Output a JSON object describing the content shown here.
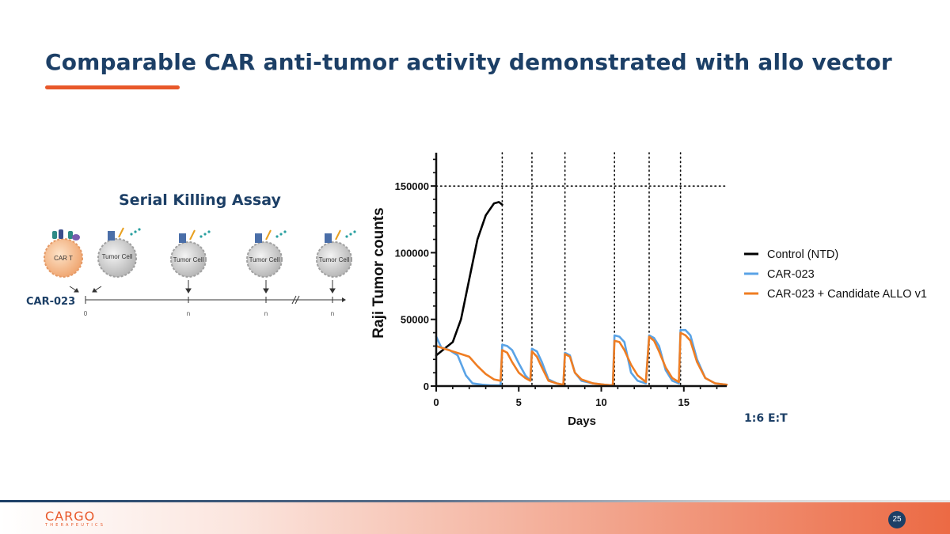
{
  "slide": {
    "title": "Comparable CAR anti-tumor activity demonstrated with allo vector",
    "page_number": "25",
    "ratio_label": "1:6 E:T",
    "logo": {
      "word": "CARGO",
      "sub": "THERAPEUTICS"
    },
    "colors": {
      "title": "#1c3f66",
      "accent": "#e8582a"
    }
  },
  "assay": {
    "title": "Serial Killing Assay",
    "row_label": "CAR-023",
    "car_t_label": "CAR T",
    "tumor_cell_label": "Tumor Cell",
    "tick_labels": [
      "0",
      "n",
      "n",
      "n"
    ]
  },
  "chart_data": {
    "type": "line",
    "xlabel": "Days",
    "ylabel": "Raji Tumor counts",
    "xlim": [
      0,
      17.6
    ],
    "ylim": [
      0,
      175000
    ],
    "x_ticks": [
      0,
      5,
      10,
      15
    ],
    "x_tick_labels": [
      "0",
      "5",
      "10",
      "15"
    ],
    "y_ticks": [
      0,
      50000,
      100000,
      150000
    ],
    "y_tick_labels": [
      "0",
      "50000",
      "100000",
      "150000"
    ],
    "reference_hline": 150000,
    "rechallenge_days": [
      4,
      5.8,
      7.8,
      10.8,
      12.9,
      14.8
    ],
    "legend_position": "right",
    "series": [
      {
        "name": "Control (NTD)",
        "color": "#000000",
        "x": [
          0,
          0.5,
          1,
          1.5,
          2,
          2.5,
          3,
          3.5,
          3.8,
          4
        ],
        "y": [
          23000,
          28000,
          33000,
          50000,
          80000,
          110000,
          128000,
          137000,
          138000,
          136000
        ]
      },
      {
        "name": "CAR-023",
        "color": "#5aa3e6",
        "x": [
          0,
          0.3,
          0.8,
          1.3,
          1.8,
          2.2,
          2.8,
          3.3,
          3.9,
          4.0,
          4.3,
          4.6,
          5.0,
          5.4,
          5.7,
          5.8,
          6.1,
          6.4,
          6.8,
          7.3,
          7.7,
          7.8,
          8.1,
          8.4,
          8.8,
          9.5,
          10.2,
          10.7,
          10.8,
          11.1,
          11.4,
          11.8,
          12.2,
          12.7,
          12.9,
          13.2,
          13.5,
          13.9,
          14.3,
          14.7,
          14.8,
          15.1,
          15.4,
          15.8,
          16.3,
          16.9,
          17.6
        ],
        "y": [
          37000,
          29000,
          27000,
          23000,
          8000,
          2000,
          1000,
          500,
          500,
          31000,
          30000,
          27000,
          17000,
          8000,
          4000,
          28000,
          26000,
          18000,
          5000,
          2000,
          1000,
          25000,
          23000,
          10000,
          4000,
          2000,
          1000,
          500,
          38000,
          37000,
          33000,
          10000,
          4000,
          2000,
          38000,
          36000,
          30000,
          12000,
          4000,
          2000,
          42000,
          42000,
          38000,
          20000,
          6000,
          2000,
          1000
        ]
      },
      {
        "name": "CAR-023 + Candidate ALLO v1",
        "color": "#ef7d22",
        "x": [
          0,
          0.5,
          1,
          1.5,
          2,
          2.5,
          3,
          3.5,
          3.9,
          4.0,
          4.3,
          4.6,
          5.0,
          5.4,
          5.7,
          5.8,
          6.1,
          6.4,
          6.8,
          7.3,
          7.7,
          7.8,
          8.1,
          8.4,
          8.8,
          9.5,
          10.2,
          10.7,
          10.8,
          11.1,
          11.4,
          11.8,
          12.2,
          12.7,
          12.9,
          13.2,
          13.5,
          13.9,
          14.3,
          14.7,
          14.8,
          15.1,
          15.4,
          15.8,
          16.3,
          16.9,
          17.6
        ],
        "y": [
          30000,
          28000,
          26000,
          24000,
          22000,
          15000,
          9000,
          5000,
          4000,
          27000,
          25000,
          18000,
          10000,
          6000,
          4000,
          26000,
          22000,
          14000,
          4000,
          2000,
          1000,
          24000,
          22000,
          10000,
          5000,
          2000,
          1000,
          500,
          34000,
          33000,
          27000,
          16000,
          8000,
          3000,
          37000,
          34000,
          26000,
          14000,
          6000,
          3000,
          40000,
          38000,
          34000,
          18000,
          6000,
          2000,
          1000
        ]
      }
    ]
  }
}
